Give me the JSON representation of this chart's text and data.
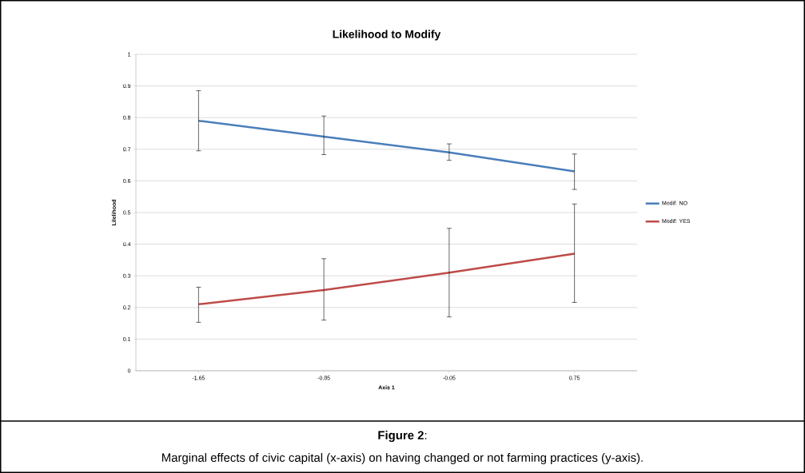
{
  "chart_data": {
    "type": "line",
    "title": "Likelihood to Modify",
    "xlabel": "Axis 1",
    "ylabel": "Lilelihood",
    "categories": [
      "-1.65",
      "-0.85",
      "-0.05",
      "0.75"
    ],
    "series": [
      {
        "name": "Modif: NO",
        "color": "#4a7ebb",
        "values": [
          0.79,
          0.74,
          0.69,
          0.63
        ],
        "errors": [
          [
            0.695,
            0.885
          ],
          [
            0.683,
            0.805
          ],
          [
            0.665,
            0.717
          ],
          [
            0.573,
            0.685
          ]
        ]
      },
      {
        "name": "Modif: YES",
        "color": "#be4b48",
        "values": [
          0.21,
          0.255,
          0.31,
          0.37
        ],
        "errors": [
          [
            0.153,
            0.264
          ],
          [
            0.16,
            0.354
          ],
          [
            0.17,
            0.45
          ],
          [
            0.216,
            0.527
          ]
        ]
      }
    ],
    "ylim": [
      0,
      1
    ],
    "yticks": [
      0,
      0.1,
      0.2,
      0.3,
      0.4,
      0.5,
      0.6,
      0.7,
      0.8,
      0.9,
      1
    ],
    "grid": "y",
    "legend": "right",
    "marker": "none",
    "line_style": "solid",
    "annotations": [
      "**Figure 2**:",
      "Marginal effects of civic capital (x-axis) on having changed or not farming practices (y-axis)."
    ]
  }
}
